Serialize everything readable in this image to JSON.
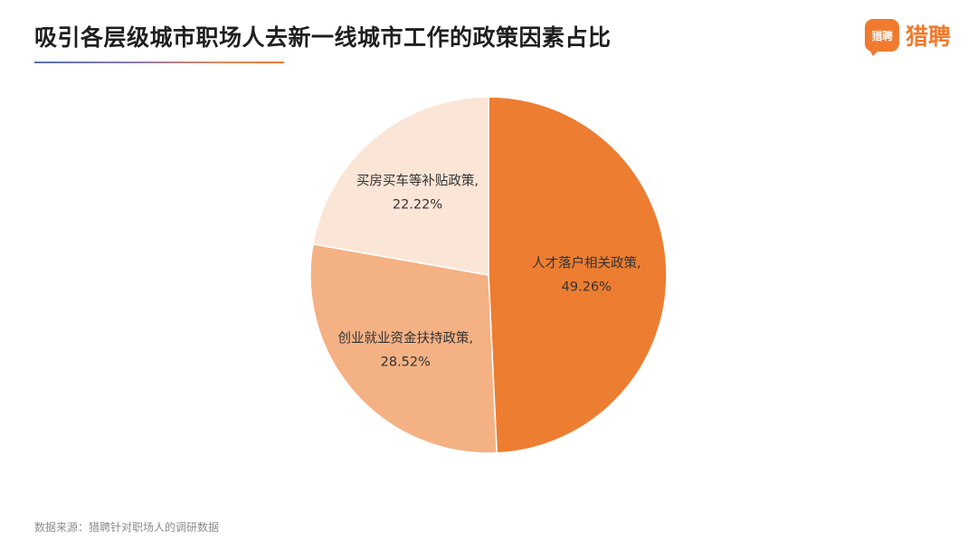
{
  "header": {
    "title": "吸引各层级城市职场人去新一线城市工作的政策因素占比",
    "logo_badge_text": "猎聘",
    "logo_text": "猎聘"
  },
  "footer": {
    "source": "数据来源：猎聘针对职场人的调研数据"
  },
  "chart_data": {
    "type": "pie",
    "title": "吸引各层级城市职场人去新一线城市工作的政策因素占比",
    "slices": [
      {
        "label": "人才落户相关政策",
        "value": 49.26,
        "value_label": "49.26%",
        "color": "#ed7d31"
      },
      {
        "label": "创业就业资金扶持政策",
        "value": 28.52,
        "value_label": "28.52%",
        "color": "#f4b183"
      },
      {
        "label": "买房买车等补贴政策",
        "value": 22.22,
        "value_label": "22.22%",
        "color": "#fbe5d6"
      }
    ],
    "start_angle": "12 o'clock",
    "direction": "clockwise",
    "legend": "none",
    "label_style": "inside, category and percent"
  }
}
